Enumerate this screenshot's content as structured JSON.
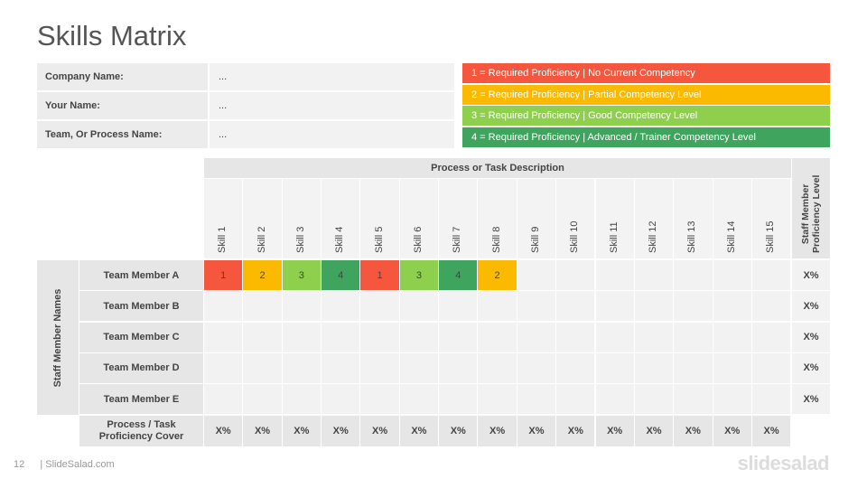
{
  "title": "Skills Matrix",
  "info": [
    {
      "label": "Company Name:",
      "value": "..."
    },
    {
      "label": "Your Name:",
      "value": "..."
    },
    {
      "label": "Team, Or Process Name:",
      "value": "..."
    }
  ],
  "legend": [
    {
      "text": "1 = Required Proficiency | No Current Competency",
      "color": "#f4573d"
    },
    {
      "text": "2 = Required Proficiency | Partial Competency Level",
      "color": "#fbba00"
    },
    {
      "text": "3 = Required Proficiency | Good Competency Level",
      "color": "#8fcf4e"
    },
    {
      "text": "4 = Required Proficiency | Advanced / Trainer Competency Level",
      "color": "#3fa45d"
    }
  ],
  "level_colors": {
    "1": "#f4573d",
    "2": "#fbba00",
    "3": "#8fcf4e",
    "4": "#3fa45d"
  },
  "matrix": {
    "process_header": "Process or Task Description",
    "skills": [
      "Skill 1",
      "Skill 2",
      "Skill 3",
      "Skill 4",
      "Skill 5",
      "Skill 6",
      "Skill 7",
      "Skill 8",
      "Skill 9",
      "Skill 10",
      "Skill 11",
      "Skill 12",
      "Skill 13",
      "Skill 14",
      "Skill 15"
    ],
    "proficiency_header": "Staff Member Proficiency Level",
    "staff_header": "Staff Member Names",
    "members": [
      {
        "name": "Team Member A",
        "scores": [
          "1",
          "2",
          "3",
          "4",
          "1",
          "3",
          "4",
          "2"
        ],
        "level": "X%"
      },
      {
        "name": "Team Member B",
        "scores": [],
        "level": "X%"
      },
      {
        "name": "Team Member C",
        "scores": [],
        "level": "X%"
      },
      {
        "name": "Team Member D",
        "scores": [],
        "level": "X%"
      },
      {
        "name": "Team Member E",
        "scores": [],
        "level": "X%"
      }
    ],
    "cover_label": "Process / Task Proficiency Cover",
    "cover_values": [
      "X%",
      "X%",
      "X%",
      "X%",
      "X%",
      "X%",
      "X%",
      "X%",
      "X%",
      "X%",
      "X%",
      "X%",
      "X%",
      "X%",
      "X%"
    ]
  },
  "footer": {
    "page_number": "12",
    "site": "| SlideSalad.com",
    "logo": "slidesalad"
  }
}
